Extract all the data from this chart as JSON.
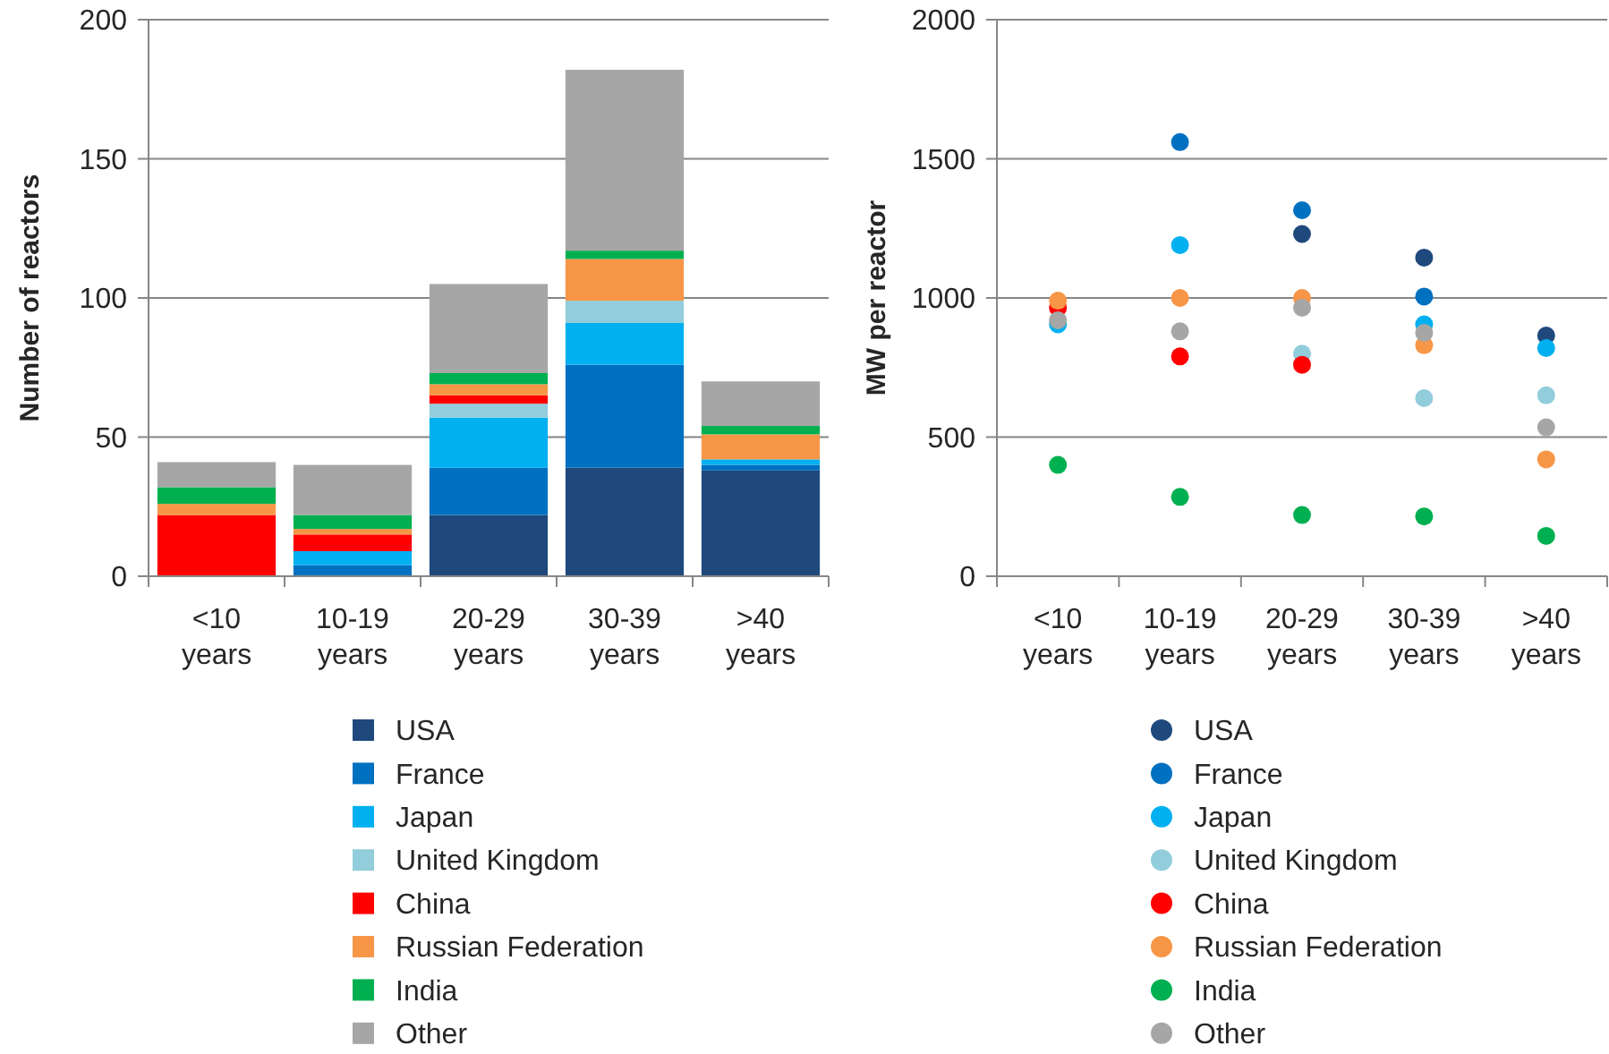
{
  "chart_data": [
    {
      "type": "bar",
      "ylabel": "Number of reactors",
      "categories": [
        "<10 years",
        "10-19 years",
        "20-29 years",
        "30-39 years",
        ">40 years"
      ],
      "stacked": true,
      "ylim": [
        0,
        200
      ],
      "yticks": [
        0,
        50,
        100,
        150,
        200
      ],
      "grid": "y",
      "legend": "bottom",
      "series": [
        {
          "name": "USA",
          "color": "#1f497d",
          "values": [
            0,
            0,
            22,
            39,
            38
          ]
        },
        {
          "name": "France",
          "color": "#0070c0",
          "values": [
            0,
            4,
            17,
            37,
            2
          ]
        },
        {
          "name": "Japan",
          "color": "#00b0f0",
          "values": [
            0,
            5,
            18,
            15,
            2
          ]
        },
        {
          "name": "United Kingdom",
          "color": "#92cddc",
          "values": [
            0,
            0,
            5,
            8,
            0
          ]
        },
        {
          "name": "China",
          "color": "#ff0000",
          "values": [
            22,
            6,
            3,
            0,
            0
          ]
        },
        {
          "name": "Russian Federation",
          "color": "#f79646",
          "values": [
            4,
            2,
            4,
            15,
            9
          ]
        },
        {
          "name": "India",
          "color": "#00b050",
          "values": [
            6,
            5,
            4,
            3,
            3
          ]
        },
        {
          "name": "Other",
          "color": "#a6a6a6",
          "values": [
            9,
            18,
            32,
            65,
            16
          ]
        }
      ]
    },
    {
      "type": "scatter",
      "ylabel": "MW per reactor",
      "categories": [
        "<10 years",
        "10-19 years",
        "20-29 years",
        "30-39 years",
        ">40 years"
      ],
      "ylim": [
        0,
        2000
      ],
      "yticks": [
        0,
        500,
        1000,
        1500,
        2000
      ],
      "grid": "y",
      "legend": "bottom",
      "marker": "circle",
      "series": [
        {
          "name": "USA",
          "color": "#1f497d",
          "values": [
            null,
            null,
            1230,
            1145,
            865
          ]
        },
        {
          "name": "France",
          "color": "#0070c0",
          "values": [
            null,
            1560,
            1315,
            1005,
            null
          ]
        },
        {
          "name": "Japan",
          "color": "#00b0f0",
          "values": [
            905,
            1190,
            null,
            905,
            820
          ]
        },
        {
          "name": "United Kingdom",
          "color": "#92cddc",
          "values": [
            null,
            null,
            800,
            640,
            650
          ]
        },
        {
          "name": "China",
          "color": "#ff0000",
          "values": [
            965,
            790,
            760,
            null,
            null
          ]
        },
        {
          "name": "Russian Federation",
          "color": "#f79646",
          "values": [
            990,
            1000,
            1000,
            830,
            420
          ]
        },
        {
          "name": "India",
          "color": "#00b050",
          "values": [
            400,
            285,
            220,
            215,
            145
          ]
        },
        {
          "name": "Other",
          "color": "#a6a6a6",
          "values": [
            920,
            880,
            965,
            875,
            535
          ]
        }
      ]
    }
  ]
}
